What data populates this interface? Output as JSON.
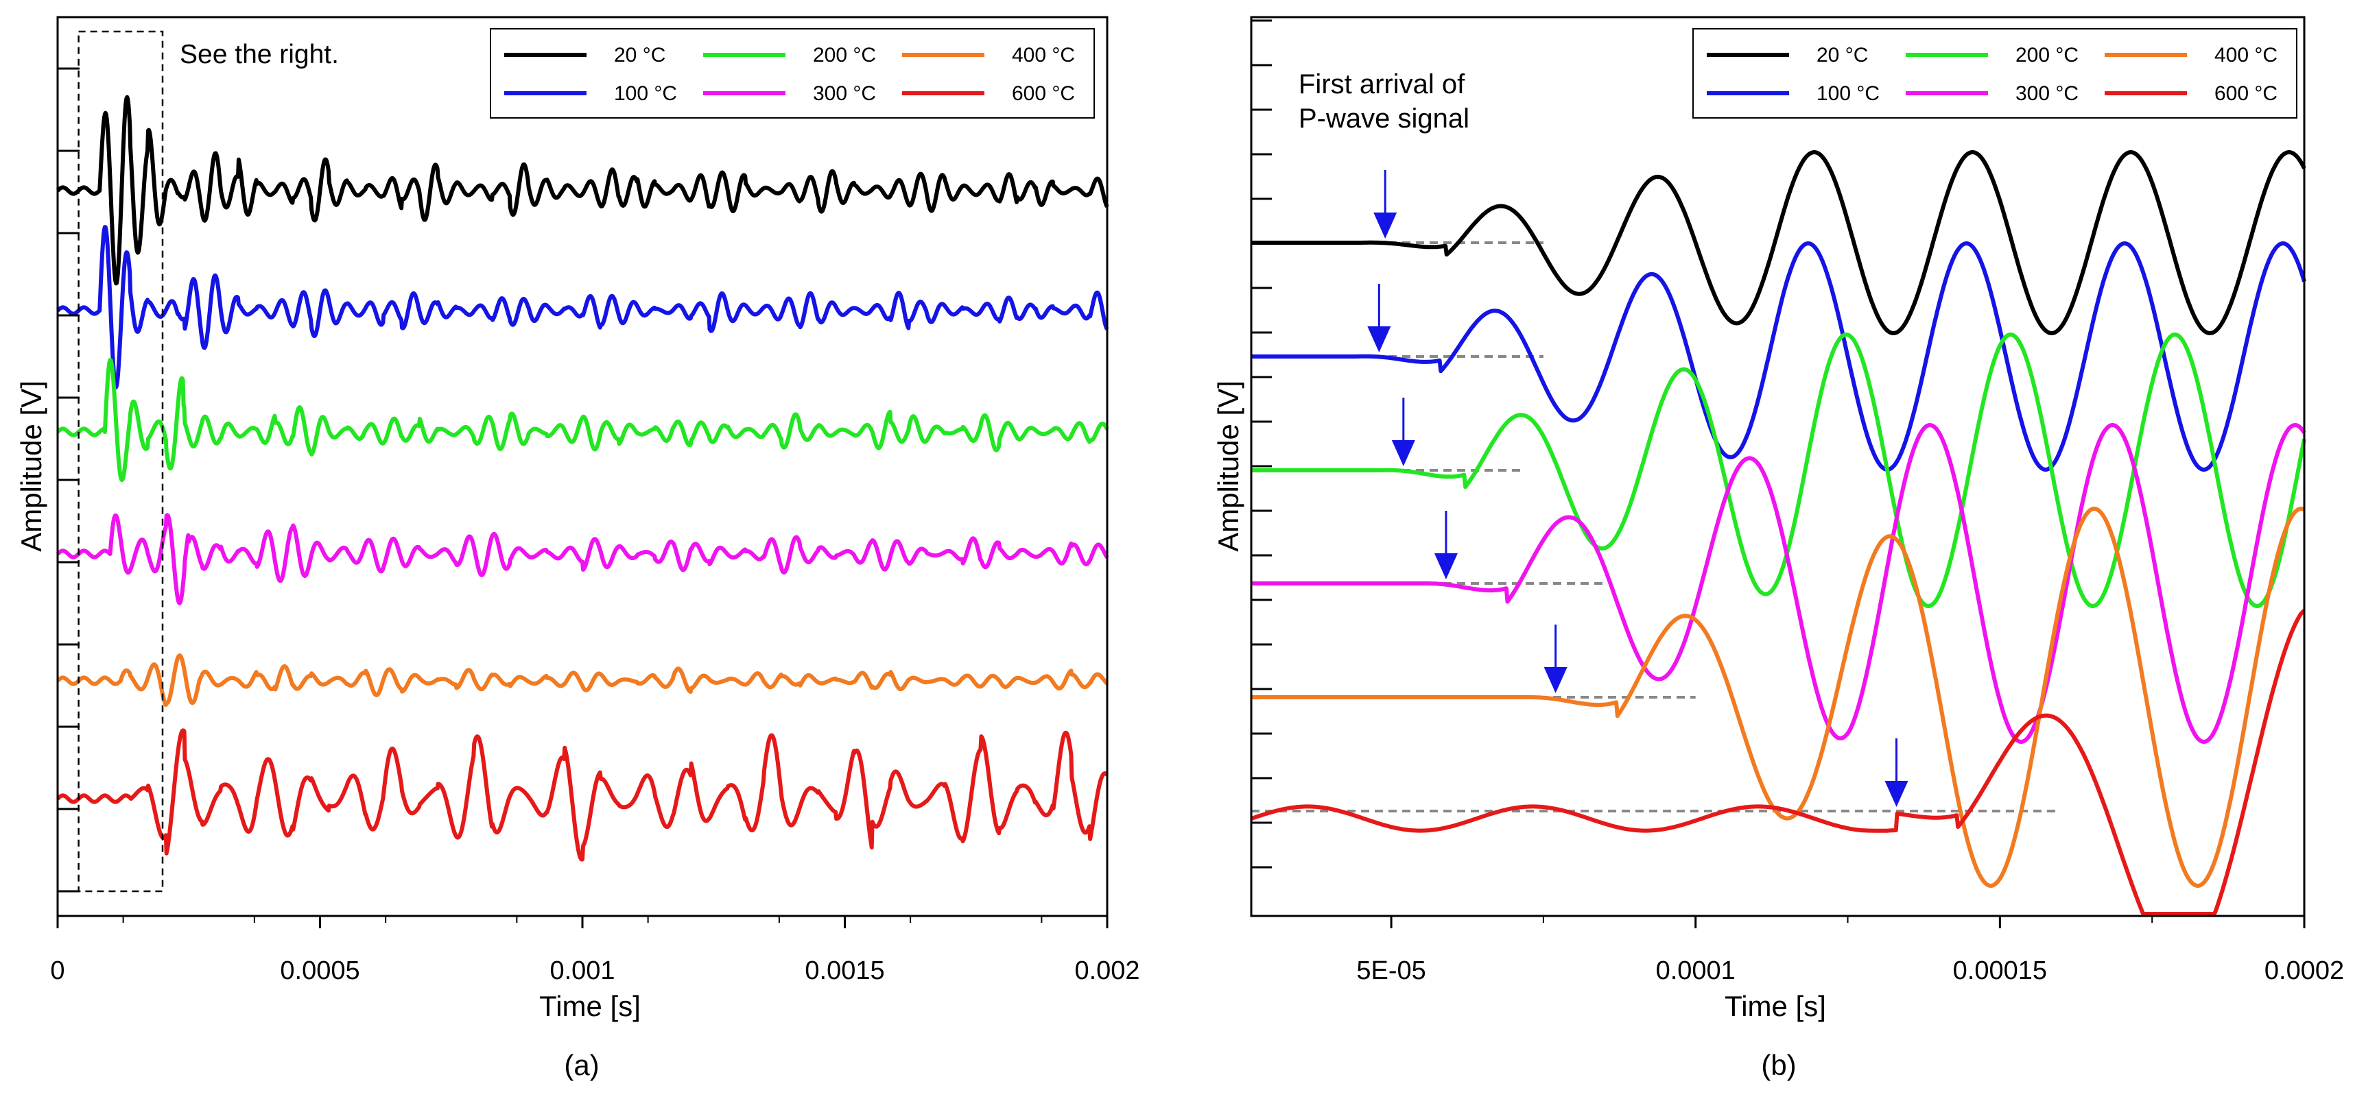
{
  "chart_data": [
    {
      "type": "line",
      "panel_label": "(a)",
      "title": "",
      "xlabel": "Time [s]",
      "ylabel": "Amplitude [V]",
      "xlim": [
        0,
        0.002
      ],
      "xticks": [
        0,
        0.0005,
        0.001,
        0.0015,
        0.002
      ],
      "xtick_labels": [
        "0",
        "0.0005",
        "0.001",
        "0.0015",
        "0.002"
      ],
      "yticks_labeled": false,
      "annotation": "See the right.",
      "zoom_box_x_range": [
        4e-05,
        0.0002
      ],
      "legend_position": "top-right",
      "series": [
        {
          "name": "20 °C",
          "color": "#000000",
          "baseline_offset": 5,
          "first_arrival": 8e-05,
          "peak_amplitude": 1.2,
          "dominant_period": 4.2e-05
        },
        {
          "name": "100 °C",
          "color": "#1414e6",
          "baseline_offset": 4,
          "first_arrival": 8e-05,
          "peak_amplitude": 1.0,
          "dominant_period": 4.2e-05
        },
        {
          "name": "200 °C",
          "color": "#22e622",
          "baseline_offset": 3,
          "first_arrival": 9e-05,
          "peak_amplitude": 1.0,
          "dominant_period": 4.5e-05
        },
        {
          "name": "300 °C",
          "color": "#f013f0",
          "baseline_offset": 2,
          "first_arrival": 0.0001,
          "peak_amplitude": 0.95,
          "dominant_period": 4.8e-05
        },
        {
          "name": "400 °C",
          "color": "#f27a20",
          "baseline_offset": 1,
          "first_arrival": 0.00012,
          "peak_amplitude": 0.6,
          "dominant_period": 5e-05
        },
        {
          "name": "600 °C",
          "color": "#e61919",
          "baseline_offset": 0,
          "first_arrival": 0.00014,
          "peak_amplitude": 0.9,
          "dominant_period": 8e-05
        }
      ]
    },
    {
      "type": "line",
      "panel_label": "(b)",
      "title": "",
      "xlabel": "Time [s]",
      "ylabel": "Amplitude [V]",
      "xlim": [
        2.7e-05,
        0.0002
      ],
      "xticks": [
        5e-05,
        0.0001,
        0.00015,
        0.0002
      ],
      "xtick_labels": [
        "5E-05",
        "0.0001",
        "0.00015",
        "0.0002"
      ],
      "yticks_labeled": false,
      "annotation_lines": [
        "First arrival of",
        "P-wave signal"
      ],
      "legend_position": "top-right",
      "series": [
        {
          "name": "20 °C",
          "color": "#000000",
          "first_arrival": 4.9e-05,
          "dashed_baseline_end": 7.5e-05
        },
        {
          "name": "100 °C",
          "color": "#1414e6",
          "first_arrival": 4.8e-05,
          "dashed_baseline_end": 7.5e-05
        },
        {
          "name": "200 °C",
          "color": "#22e622",
          "first_arrival": 5.2e-05,
          "dashed_baseline_end": 7.2e-05
        },
        {
          "name": "300 °C",
          "color": "#f013f0",
          "first_arrival": 5.9e-05,
          "dashed_baseline_end": 8.5e-05
        },
        {
          "name": "400 °C",
          "color": "#f27a20",
          "first_arrival": 7.7e-05,
          "dashed_baseline_end": 0.0001
        },
        {
          "name": "600 °C",
          "color": "#e61919",
          "first_arrival": 0.000133,
          "dashed_baseline_end": 0.00016
        }
      ]
    }
  ]
}
